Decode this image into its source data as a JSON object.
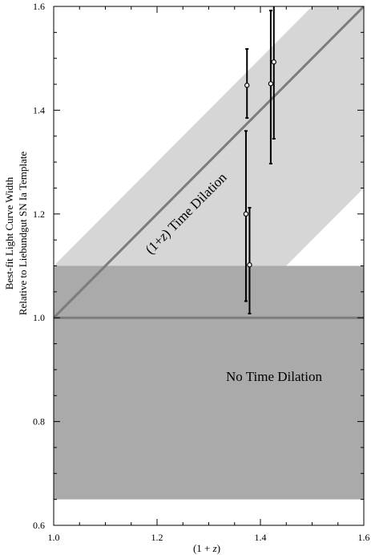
{
  "chart_data": {
    "type": "scatter",
    "title": "",
    "xlabel_parts": [
      "(1 + ",
      "z",
      ")"
    ],
    "ylabel_lines": [
      "Best-fit Light Curve Width",
      "Relative to  Liebundgut SN Ia Template"
    ],
    "xlim": [
      1.0,
      1.6
    ],
    "ylim": [
      0.6,
      1.6
    ],
    "xticks": [
      "1.0",
      "1.2",
      "1.4",
      "1.6"
    ],
    "yticks": [
      "0.6",
      "0.8",
      "1.0",
      "1.2",
      "1.4",
      "1.6"
    ],
    "grid": false,
    "bands": [
      {
        "name": "time-dilation-band",
        "color": "#d6d6d6",
        "x": [
          1.0,
          1.6
        ],
        "lower_offset": -0.35,
        "upper_offset": 0.1
      },
      {
        "name": "no-dilation-band",
        "color": "#aaaaaa",
        "y": [
          0.65,
          1.1
        ]
      }
    ],
    "lines": [
      {
        "name": "time-dilation-line",
        "color": "#7c7c7c",
        "x": [
          1.0,
          1.6
        ],
        "y": [
          1.0,
          1.6
        ]
      },
      {
        "name": "no-dilation-line",
        "color": "#7c7c7c",
        "x": [
          1.0,
          1.6
        ],
        "y": [
          1.0,
          1.0
        ]
      }
    ],
    "points": [
      {
        "x": 1.374,
        "y": 1.448,
        "ylo": 1.385,
        "yhi": 1.518
      },
      {
        "x": 1.372,
        "y": 1.2,
        "ylo": 1.032,
        "yhi": 1.36
      },
      {
        "x": 1.379,
        "y": 1.102,
        "ylo": 1.008,
        "yhi": 1.212
      },
      {
        "x": 1.42,
        "y": 1.451,
        "ylo": 1.297,
        "yhi": 1.592
      },
      {
        "x": 1.426,
        "y": 1.493,
        "ylo": 1.345,
        "yhi": 1.611
      }
    ],
    "annotations": {
      "time_dilation_parts": [
        "(1+",
        "z",
        ") Time Dilation"
      ],
      "no_dilation": "No Time Dilation"
    }
  }
}
